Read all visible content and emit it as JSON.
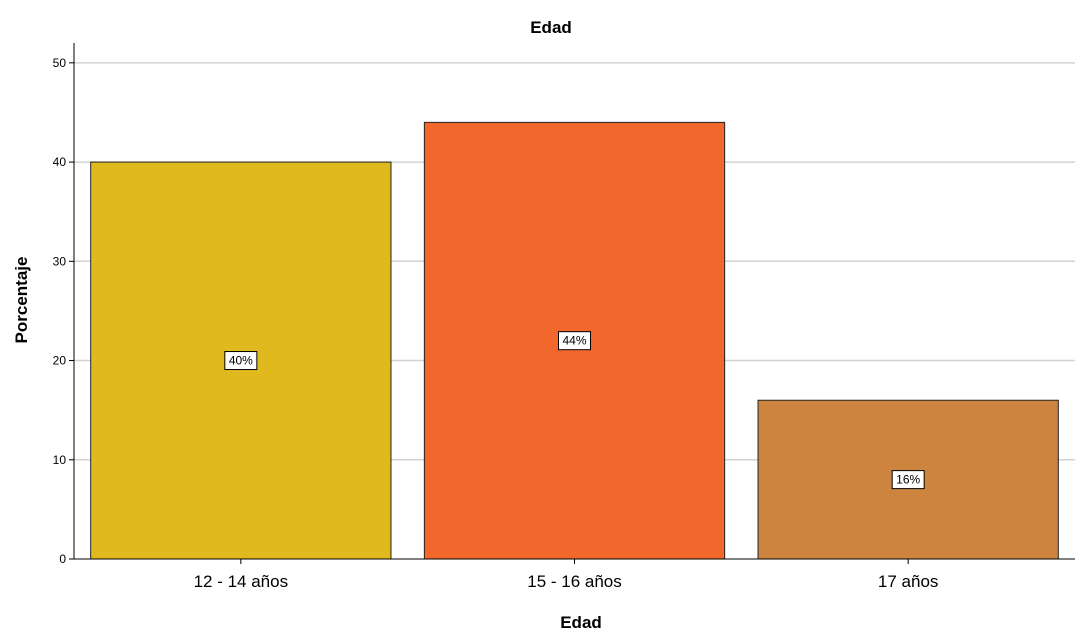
{
  "chart_data": {
    "type": "bar",
    "title": "Edad",
    "xlabel": "Edad",
    "ylabel": "Porcentaje",
    "categories": [
      "12 - 14 años",
      "15 - 16 años",
      "17 años"
    ],
    "values": [
      40,
      44,
      16
    ],
    "data_labels": [
      "40%",
      "44%",
      "16%"
    ],
    "colors": [
      "#dfb91e",
      "#f2672b",
      "#cc843f"
    ],
    "ylim": [
      0,
      52
    ],
    "yticks": [
      0,
      10,
      20,
      30,
      40,
      50
    ],
    "grid": true,
    "legend": "none"
  }
}
